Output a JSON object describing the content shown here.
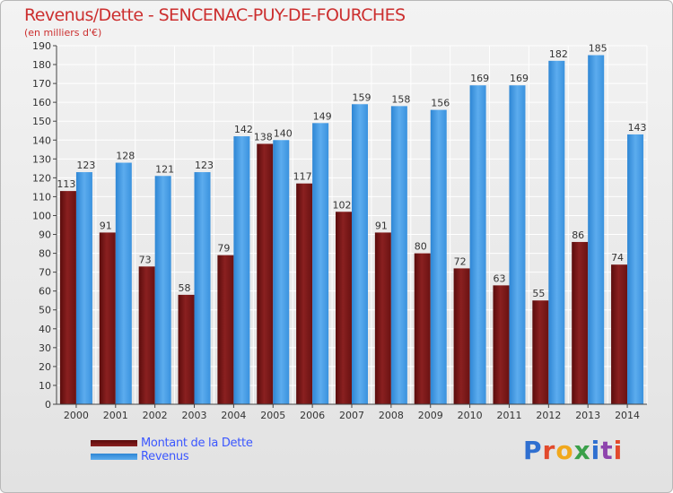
{
  "title": "Revenus/Dette - SENCENAC-PUY-DE-FOURCHES",
  "subtitle": "(en milliers d'€)",
  "colors": {
    "debt": "#7a1616",
    "revenue": "#3e96e0",
    "title": "#cc2f2f",
    "legend_text": "#3b57ff"
  },
  "legend": {
    "debt_label": "Montant de la Dette",
    "revenue_label": "Revenus"
  },
  "logo": {
    "text": "Proxiti",
    "icon": "proxiti-logo"
  },
  "chart_data": {
    "type": "bar",
    "title": "Revenus/Dette - SENCENAC-PUY-DE-FOURCHES",
    "ylabel": "(en milliers d'€)",
    "xlabel": "",
    "ylim": [
      0,
      190
    ],
    "ytick_step": 10,
    "grid": true,
    "legend_position": "bottom-left",
    "categories": [
      "2000",
      "2001",
      "2002",
      "2003",
      "2004",
      "2005",
      "2006",
      "2007",
      "2008",
      "2009",
      "2010",
      "2011",
      "2012",
      "2013",
      "2014"
    ],
    "series": [
      {
        "name": "Montant de la Dette",
        "values": [
          113,
          91,
          73,
          58,
          79,
          138,
          117,
          102,
          91,
          80,
          72,
          63,
          55,
          86,
          74
        ]
      },
      {
        "name": "Revenus",
        "values": [
          123,
          128,
          121,
          123,
          142,
          140,
          149,
          159,
          158,
          156,
          169,
          169,
          182,
          185,
          143
        ]
      }
    ]
  }
}
